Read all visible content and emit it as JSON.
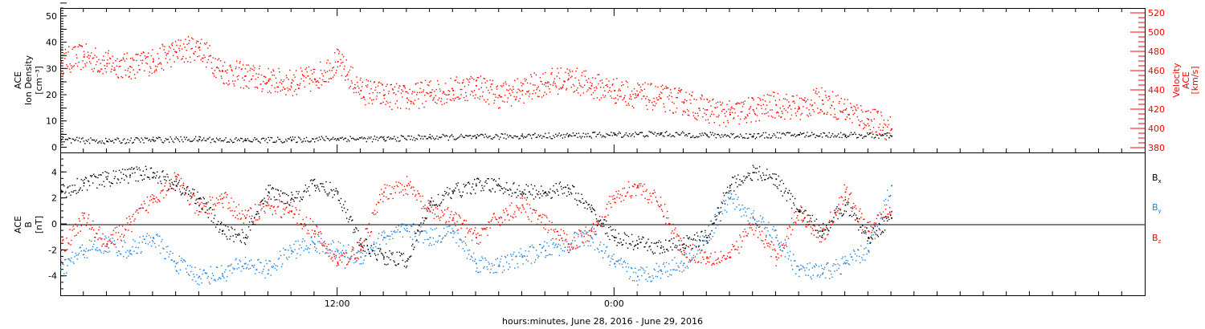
{
  "colors": {
    "black": "#000000",
    "red": "#ff0000",
    "blue": "#1f7fd6"
  },
  "chart_data": [
    {
      "type": "scatter",
      "panel": "top",
      "ylabel_left": [
        "ACE",
        "Ion Density",
        "[cm⁻³]"
      ],
      "ylabel_right": [
        "ACE",
        "Velocity",
        "[km/s]"
      ],
      "ylim_left": [
        -2,
        53
      ],
      "yticks_left": [
        "0",
        "10",
        "20",
        "30",
        "40",
        "50"
      ],
      "ylim_right": [
        375,
        525
      ],
      "yticks_right": [
        "380",
        "400",
        "420",
        "440",
        "460",
        "480",
        "500",
        "520"
      ],
      "series": [
        {
          "axis": "left",
          "color": "#000000",
          "x": [
            0.0,
            2.0,
            4.0,
            6.0,
            8.0,
            10.0,
            12.0,
            14.0,
            16.0,
            18.0,
            20.0,
            22.0,
            24.0,
            26.0,
            28.0,
            30.0,
            32.0,
            34.0,
            36.0
          ],
          "y": [
            3.0,
            2.5,
            3.0,
            3.2,
            2.8,
            3.0,
            3.5,
            3.3,
            4.0,
            4.0,
            4.5,
            4.6,
            5.0,
            5.2,
            4.8,
            4.5,
            5.0,
            4.8,
            4.5
          ]
        },
        {
          "axis": "right",
          "color": "#ff0000",
          "x": [
            0.0,
            1.0,
            2.0,
            3.0,
            4.0,
            5.0,
            6.0,
            7.0,
            8.0,
            9.0,
            10.0,
            11.0,
            12.0,
            13.0,
            14.0,
            15.0,
            16.0,
            17.0,
            18.0,
            19.0,
            20.0,
            21.0,
            22.0,
            23.0,
            24.0,
            25.0,
            26.0,
            27.0,
            28.0,
            29.0,
            30.0,
            31.0,
            32.0,
            33.0,
            34.0,
            35.0,
            36.0
          ],
          "y": [
            470,
            475,
            468,
            465,
            470,
            480,
            485,
            460,
            455,
            450,
            448,
            452,
            470,
            440,
            435,
            432,
            438,
            440,
            445,
            435,
            440,
            448,
            452,
            445,
            440,
            435,
            432,
            428,
            420,
            415,
            420,
            425,
            422,
            430,
            420,
            410,
            400
          ]
        }
      ]
    },
    {
      "type": "scatter",
      "panel": "bottom",
      "ylabel_left": [
        "ACE",
        "B",
        "[nT]"
      ],
      "ylim": [
        -5.5,
        5.5
      ],
      "yticks": [
        "-4",
        "-2",
        "0",
        "2",
        "4"
      ],
      "legend": [
        {
          "name": "B",
          "sub": "x",
          "color": "#000000"
        },
        {
          "name": "B",
          "sub": "y",
          "color": "#1f7fd6"
        },
        {
          "name": "B",
          "sub": "z",
          "color": "#ff0000"
        }
      ],
      "series": [
        {
          "name": "Bx",
          "color": "#000000",
          "x": [
            0.0,
            1.0,
            2.0,
            3.0,
            4.0,
            5.0,
            6.0,
            7.0,
            8.0,
            9.0,
            10.0,
            11.0,
            12.0,
            13.0,
            14.0,
            15.0,
            16.0,
            17.0,
            18.0,
            19.0,
            20.0,
            21.0,
            22.0,
            23.0,
            24.0,
            25.0,
            26.0,
            27.0,
            28.0,
            29.0,
            30.0,
            31.0,
            32.0,
            33.0,
            34.0,
            35.0,
            36.0
          ],
          "y": [
            2.5,
            3.2,
            3.5,
            3.8,
            4.0,
            3.0,
            2.0,
            -0.5,
            -1.0,
            2.5,
            2.0,
            3.0,
            2.5,
            -1.5,
            -2.5,
            -2.8,
            1.5,
            2.5,
            3.0,
            3.0,
            2.5,
            2.5,
            2.8,
            1.0,
            -1.0,
            -1.5,
            -1.8,
            -1.5,
            -1.0,
            3.0,
            4.0,
            3.5,
            1.0,
            -0.5,
            1.5,
            -1.0,
            0.5
          ]
        },
        {
          "name": "By",
          "color": "#1f7fd6",
          "x": [
            0.0,
            1.0,
            2.0,
            3.0,
            4.0,
            5.0,
            6.0,
            7.0,
            8.0,
            9.0,
            10.0,
            11.0,
            12.0,
            13.0,
            14.0,
            15.0,
            16.0,
            17.0,
            18.0,
            19.0,
            20.0,
            21.0,
            22.0,
            23.0,
            24.0,
            25.0,
            26.0,
            27.0,
            28.0,
            29.0,
            30.0,
            31.0,
            32.0,
            33.0,
            34.0,
            35.0,
            36.0
          ],
          "y": [
            -3.5,
            -2.0,
            -1.5,
            -2.0,
            -1.0,
            -3.0,
            -4.0,
            -3.8,
            -3.0,
            -3.5,
            -2.0,
            -1.5,
            -2.0,
            -2.5,
            -1.0,
            -0.5,
            -1.0,
            -0.5,
            -3.0,
            -3.2,
            -2.5,
            -2.0,
            -1.5,
            -1.0,
            -3.0,
            -4.0,
            -3.5,
            -3.0,
            -1.0,
            2.0,
            0.5,
            -1.0,
            -3.5,
            -3.8,
            -3.0,
            -2.0,
            3.0
          ]
        },
        {
          "name": "Bz",
          "color": "#ff0000",
          "x": [
            0.0,
            1.0,
            2.0,
            3.0,
            4.0,
            5.0,
            6.0,
            7.0,
            8.0,
            9.0,
            10.0,
            11.0,
            12.0,
            13.0,
            14.0,
            15.0,
            16.0,
            17.0,
            18.0,
            19.0,
            20.0,
            21.0,
            22.0,
            23.0,
            24.0,
            25.0,
            26.0,
            27.0,
            28.0,
            29.0,
            30.0,
            31.0,
            32.0,
            33.0,
            34.0,
            35.0,
            36.0
          ],
          "y": [
            -2.0,
            0.5,
            -1.5,
            0.0,
            2.0,
            3.5,
            1.0,
            2.0,
            0.5,
            1.5,
            1.0,
            -0.5,
            -3.0,
            -2.0,
            2.5,
            3.0,
            1.0,
            0.5,
            -1.0,
            0.5,
            1.5,
            0.0,
            -1.5,
            -0.5,
            2.0,
            3.0,
            1.5,
            -2.0,
            -2.5,
            -2.5,
            0.0,
            -2.5,
            1.0,
            -1.0,
            2.5,
            -0.5,
            1.0
          ]
        }
      ]
    }
  ],
  "x_axis": {
    "domain_hours": [
      0,
      47
    ],
    "tick_hours": [
      12,
      24
    ],
    "tick_labels": [
      "12:00",
      "0:00"
    ],
    "minor_tick_hours": [
      1,
      2,
      3,
      4,
      5,
      6,
      7,
      8,
      9,
      10,
      11,
      13,
      14,
      15,
      16,
      17,
      18,
      19,
      20,
      21,
      22,
      23,
      25,
      26,
      27,
      28,
      29,
      30,
      31,
      32,
      33,
      34,
      35,
      36,
      37,
      38,
      39,
      40,
      41,
      42,
      43,
      44,
      45,
      46
    ],
    "title": "hours:minutes, June 28, 2016 - June 29, 2016"
  }
}
